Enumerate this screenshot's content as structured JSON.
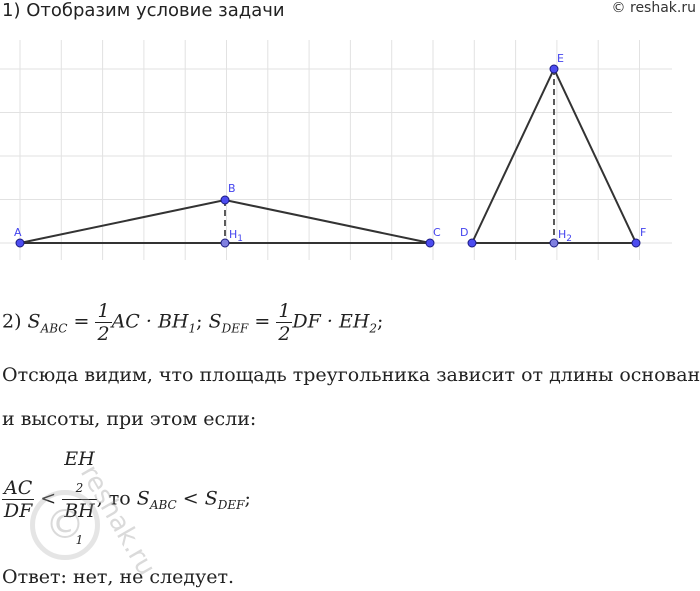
{
  "header": {
    "step1": "1) Отобразим условие задачи",
    "copyright": "© reshak.ru"
  },
  "figure": {
    "points": {
      "A": "A",
      "B": "B",
      "C": "C",
      "H1": "H",
      "H1_sub": "1",
      "D": "D",
      "E": "E",
      "F": "F",
      "H2": "H",
      "H2_sub": "2"
    },
    "colors": {
      "point": "#4c4cf0",
      "line": "#333333",
      "grid": "#dddddd"
    }
  },
  "formula": {
    "prefix": "2) ",
    "S": "S",
    "abc": "ABC",
    "def": "DEF",
    "eq": " = ",
    "half_num": "1",
    "half_den": "2",
    "ac_bh": "AC · BH",
    "one": "1",
    "sep": "; ",
    "df_eh": "DF · EH",
    "two": "2",
    "end": ";"
  },
  "text": {
    "line1": "Отсюда видим, что площадь треугольника зависит от длины основания",
    "line2": "и высоты, при этом если:"
  },
  "condition": {
    "ac": "AC",
    "df": "DF",
    "lt": " < ",
    "eh": "EH",
    "two": "2",
    "bh": "BH",
    "one": "1",
    "then": ", то ",
    "S": "S",
    "abc": "ABC",
    "def": "DEF",
    "lt2": " < ",
    "end": ";"
  },
  "answer": "Ответ: нет, не следует.",
  "watermark": "reshak.ru"
}
